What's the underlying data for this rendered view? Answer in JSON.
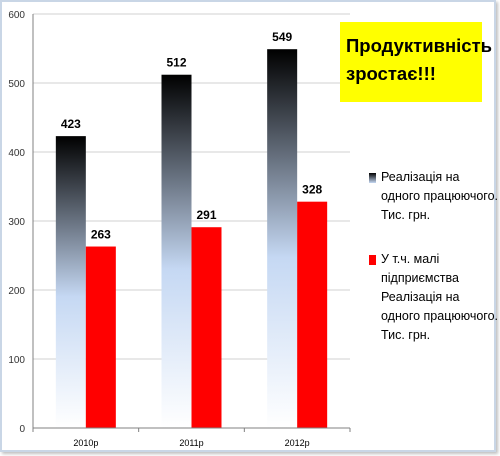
{
  "callout": {
    "text": "Продуктивність зростає!!!"
  },
  "colors": {
    "series_1_top": "#000000",
    "series_1_bottom": "#c5d8f3",
    "series_2": "#ff0000",
    "axis": "#808080",
    "grid": "#d0d0d0",
    "callout_bg": "#ffff00"
  },
  "chart_data": {
    "type": "bar",
    "categories": [
      "2010р",
      "2011р",
      "2012р"
    ],
    "series": [
      {
        "name": "Реалізація на одного працюючого. Тис. грн.",
        "values": [
          423,
          512,
          549
        ]
      },
      {
        "name": "У т.ч. малі підприємства Реалізація на одного працюючого. Тис. грн.",
        "values": [
          263,
          291,
          328
        ]
      }
    ],
    "ylim": [
      0,
      600
    ],
    "yticks": [
      0,
      100,
      200,
      300,
      400,
      500,
      600
    ],
    "grid": true,
    "legend_position": "right",
    "data_labels": true
  },
  "legend": [
    {
      "text": "Реалізація на одного працюючого. Тис. грн."
    },
    {
      "text": "У т.ч. малі підприємства Реалізація на одного працюючого. Тис. грн."
    }
  ]
}
